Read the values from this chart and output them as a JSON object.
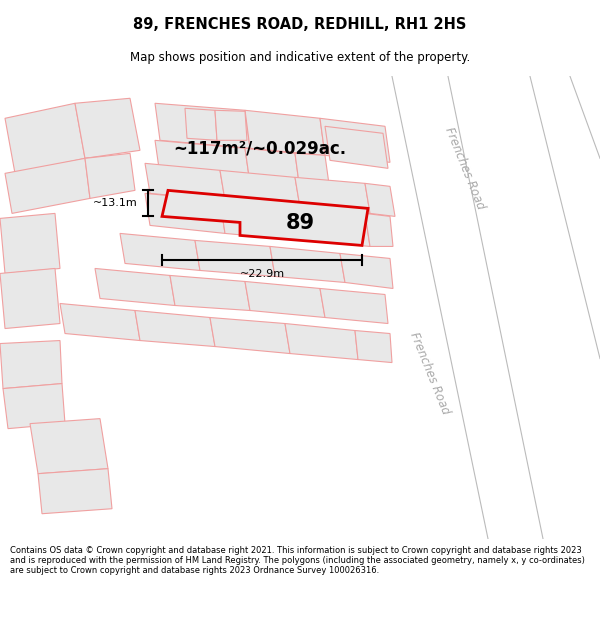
{
  "title": "89, FRENCHES ROAD, REDHILL, RH1 2HS",
  "subtitle": "Map shows position and indicative extent of the property.",
  "footer": "Contains OS data © Crown copyright and database right 2021. This information is subject to Crown copyright and database rights 2023 and is reproduced with the permission of HM Land Registry. The polygons (including the associated geometry, namely x, y co-ordinates) are subject to Crown copyright and database rights 2023 Ordnance Survey 100026316.",
  "road_label_top": "Frenches Road",
  "road_label_bottom": "Frenches Road",
  "area_text": "~117m²/~0.029ac.",
  "number_text": "89",
  "dim1_text": "~13.1m",
  "dim2_text": "~22.9m",
  "highlight_color": "#dd0000",
  "building_fill": "#e8e8e8",
  "building_edge": "#f0a0a0",
  "road_line_color": "#bbbbbb",
  "map_bg": "#f5f5f5",
  "white": "#ffffff"
}
